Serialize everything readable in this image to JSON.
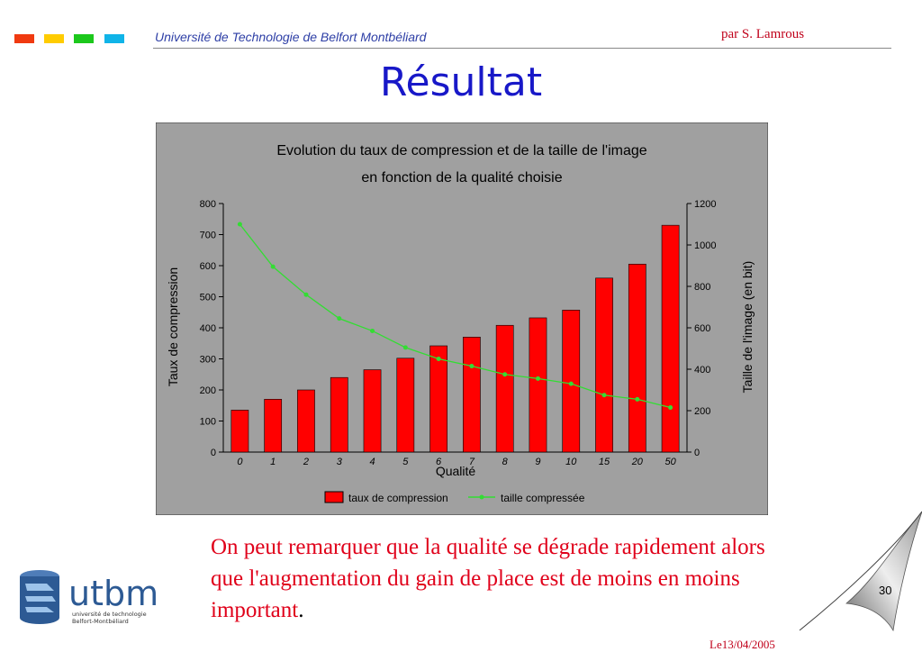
{
  "header": {
    "university": "Université de Technologie de Belfort Montbéliard",
    "author": "par S. Lamrous",
    "colors": [
      "#f03a10",
      "#ffcc00",
      "#1cc81c",
      "#10b4e8"
    ]
  },
  "title": "Résultat",
  "chart_data": {
    "type": "bar",
    "title": "Evolution du taux de compression et de la taille de l'image",
    "subtitle": "en fonction de la qualité choisie",
    "xlabel": "Qualité",
    "ylabel": "Taux de compression",
    "y2label": "Taille de l'image (en bit)",
    "categories": [
      "0",
      "1",
      "2",
      "3",
      "4",
      "5",
      "6",
      "7",
      "8",
      "9",
      "10",
      "15",
      "20",
      "50"
    ],
    "ylim": [
      0,
      800
    ],
    "y_ticks": [
      "0",
      "100",
      "200",
      "300",
      "400",
      "500",
      "600",
      "700",
      "800"
    ],
    "y2lim": [
      0,
      1200
    ],
    "y2_ticks": [
      "0",
      "200",
      "400",
      "600",
      "800",
      "1000",
      "1200"
    ],
    "series": [
      {
        "name": "taux de compression",
        "type": "bar",
        "axis": "left",
        "color": "#ff0000",
        "values": [
          135,
          170,
          200,
          240,
          265,
          302,
          342,
          370,
          408,
          432,
          457,
          560,
          605,
          730
        ]
      },
      {
        "name": "taille compressée",
        "type": "line",
        "axis": "right",
        "color": "#33dd33",
        "values": [
          1100,
          895,
          760,
          645,
          585,
          505,
          450,
          415,
          375,
          355,
          330,
          275,
          255,
          215
        ]
      }
    ],
    "legend": "bottom",
    "background": "#a0a0a0",
    "grid": false
  },
  "caption": {
    "text": "On peut remarquer que la qualité se dégrade rapidement alors que l'augmentation du gain de place est de moins en moins important",
    "period": "."
  },
  "logo": {
    "name": "utbm",
    "line1": "université de technologie",
    "line2": "Belfort-Montbéliard"
  },
  "page_number": "30",
  "footer_date": "Le13/04/2005"
}
